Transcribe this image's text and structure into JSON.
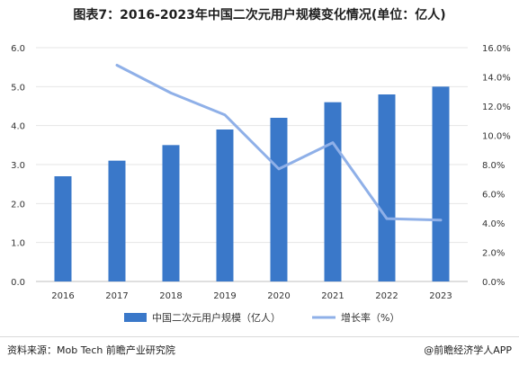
{
  "title": "图表7：2016-2023年中国二次元用户规模变化情况(单位：亿人)",
  "source": "资料来源：Mob Tech 前瞻产业研究院",
  "brand": "@前瞻经济学人APP",
  "colors": {
    "bar": "#3a78c9",
    "line": "#8fb0e8",
    "axis": "#bfbfbf",
    "grid": "#e6e6e6",
    "text": "#333333"
  },
  "chart_data": {
    "type": "bar",
    "categories": [
      "2016",
      "2017",
      "2018",
      "2019",
      "2020",
      "2021",
      "2022",
      "2023"
    ],
    "series": [
      {
        "name": "中国二次元用户规模（亿人）",
        "type": "bar",
        "axis": "left",
        "values": [
          2.7,
          3.1,
          3.5,
          3.9,
          4.2,
          4.6,
          4.8,
          5.0
        ]
      },
      {
        "name": "增长率（%）",
        "type": "line",
        "axis": "right",
        "values": [
          null,
          14.8,
          12.9,
          11.4,
          7.7,
          9.5,
          4.3,
          4.2
        ]
      }
    ],
    "y_left": {
      "min": 0,
      "max": 6,
      "ticks": [
        "0.0",
        "1.0",
        "2.0",
        "3.0",
        "4.0",
        "5.0",
        "6.0"
      ]
    },
    "y_right": {
      "min": 0,
      "max": 16,
      "ticks": [
        "0.0%",
        "2.0%",
        "4.0%",
        "6.0%",
        "8.0%",
        "10.0%",
        "12.0%",
        "14.0%",
        "16.0%"
      ]
    },
    "legend_position": "bottom",
    "grid": true
  }
}
